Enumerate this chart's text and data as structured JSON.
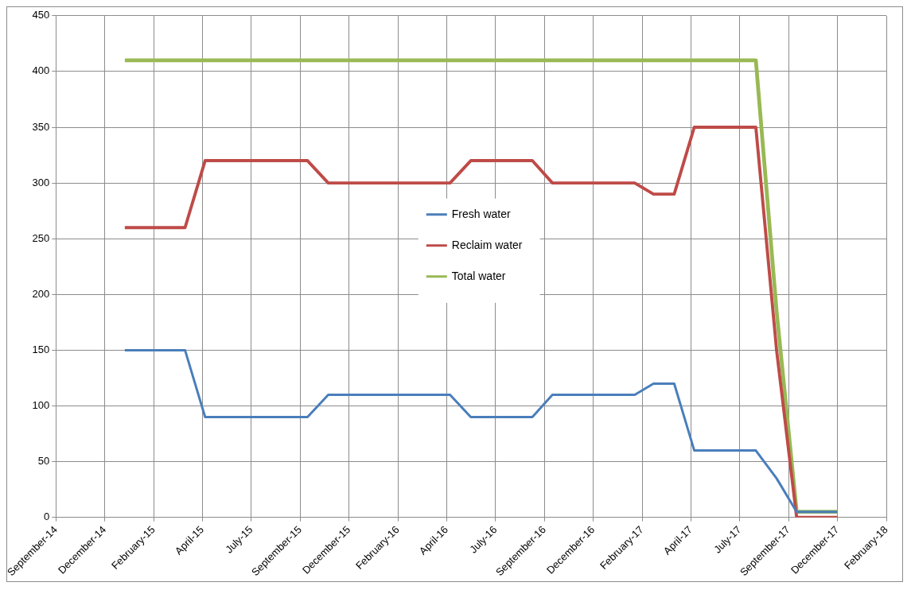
{
  "chart_data": {
    "type": "line",
    "x": [
      "2015-01-01",
      "2015-02-01",
      "2015-03-01",
      "2015-04-01",
      "2015-05-01",
      "2015-06-01",
      "2015-07-01",
      "2015-08-01",
      "2015-09-01",
      "2015-10-01",
      "2015-11-01",
      "2015-12-01",
      "2016-01-01",
      "2016-02-01",
      "2016-03-01",
      "2016-04-01",
      "2016-05-01",
      "2016-06-01",
      "2016-07-01",
      "2016-08-01",
      "2016-09-01",
      "2016-10-01",
      "2016-11-01",
      "2016-12-01",
      "2017-01-01",
      "2017-02-01",
      "2017-03-01",
      "2017-04-01",
      "2017-05-01",
      "2017-06-01",
      "2017-07-01",
      "2017-08-01",
      "2017-09-01",
      "2017-10-01",
      "2017-11-01",
      "2017-12-01"
    ],
    "series": [
      {
        "name": "Fresh water",
        "color": "#4a7ebb",
        "values": [
          150,
          150,
          150,
          150,
          90,
          90,
          90,
          90,
          90,
          90,
          110,
          110,
          110,
          110,
          110,
          110,
          110,
          90,
          90,
          90,
          90,
          110,
          110,
          110,
          110,
          110,
          120,
          120,
          60,
          60,
          60,
          60,
          35,
          5,
          5,
          5
        ]
      },
      {
        "name": "Reclaim water",
        "color": "#be4b48",
        "values": [
          260,
          260,
          260,
          260,
          320,
          320,
          320,
          320,
          320,
          320,
          300,
          300,
          300,
          300,
          300,
          300,
          300,
          320,
          320,
          320,
          320,
          300,
          300,
          300,
          300,
          300,
          290,
          290,
          350,
          350,
          350,
          350,
          150,
          0,
          0,
          0
        ]
      },
      {
        "name": "Total water",
        "color": "#98b954",
        "values": [
          410,
          410,
          410,
          410,
          410,
          410,
          410,
          410,
          410,
          410,
          410,
          410,
          410,
          410,
          410,
          410,
          410,
          410,
          410,
          410,
          410,
          410,
          410,
          410,
          410,
          410,
          410,
          410,
          410,
          410,
          410,
          410,
          185,
          5,
          5,
          5
        ]
      }
    ],
    "xlim": [
      "2014-09-20",
      "2018-02-12"
    ],
    "xticks": [
      {
        "value": "2014-09-20",
        "label": "September-14"
      },
      {
        "value": "2014-12-02",
        "label": "December-14"
      },
      {
        "value": "2015-02-13",
        "label": "February-15"
      },
      {
        "value": "2015-04-27",
        "label": "April-15"
      },
      {
        "value": "2015-07-09",
        "label": "July-15"
      },
      {
        "value": "2015-09-20",
        "label": "September-15"
      },
      {
        "value": "2015-12-02",
        "label": "December-15"
      },
      {
        "value": "2016-02-13",
        "label": "February-16"
      },
      {
        "value": "2016-04-26",
        "label": "April-16"
      },
      {
        "value": "2016-07-08",
        "label": "July-16"
      },
      {
        "value": "2016-09-19",
        "label": "September-16"
      },
      {
        "value": "2016-12-01",
        "label": "December-16"
      },
      {
        "value": "2017-02-12",
        "label": "February-17"
      },
      {
        "value": "2017-04-26",
        "label": "April-17"
      },
      {
        "value": "2017-07-08",
        "label": "July-17"
      },
      {
        "value": "2017-09-19",
        "label": "September-17"
      },
      {
        "value": "2017-12-01",
        "label": "December-17"
      },
      {
        "value": "2018-02-12",
        "label": "February-18"
      }
    ],
    "ylim": [
      0,
      450
    ],
    "yticks": [
      0,
      50,
      100,
      150,
      200,
      250,
      300,
      350,
      400,
      450
    ],
    "grid": true,
    "legend": "center",
    "marker": "none",
    "line_style": "solid"
  }
}
